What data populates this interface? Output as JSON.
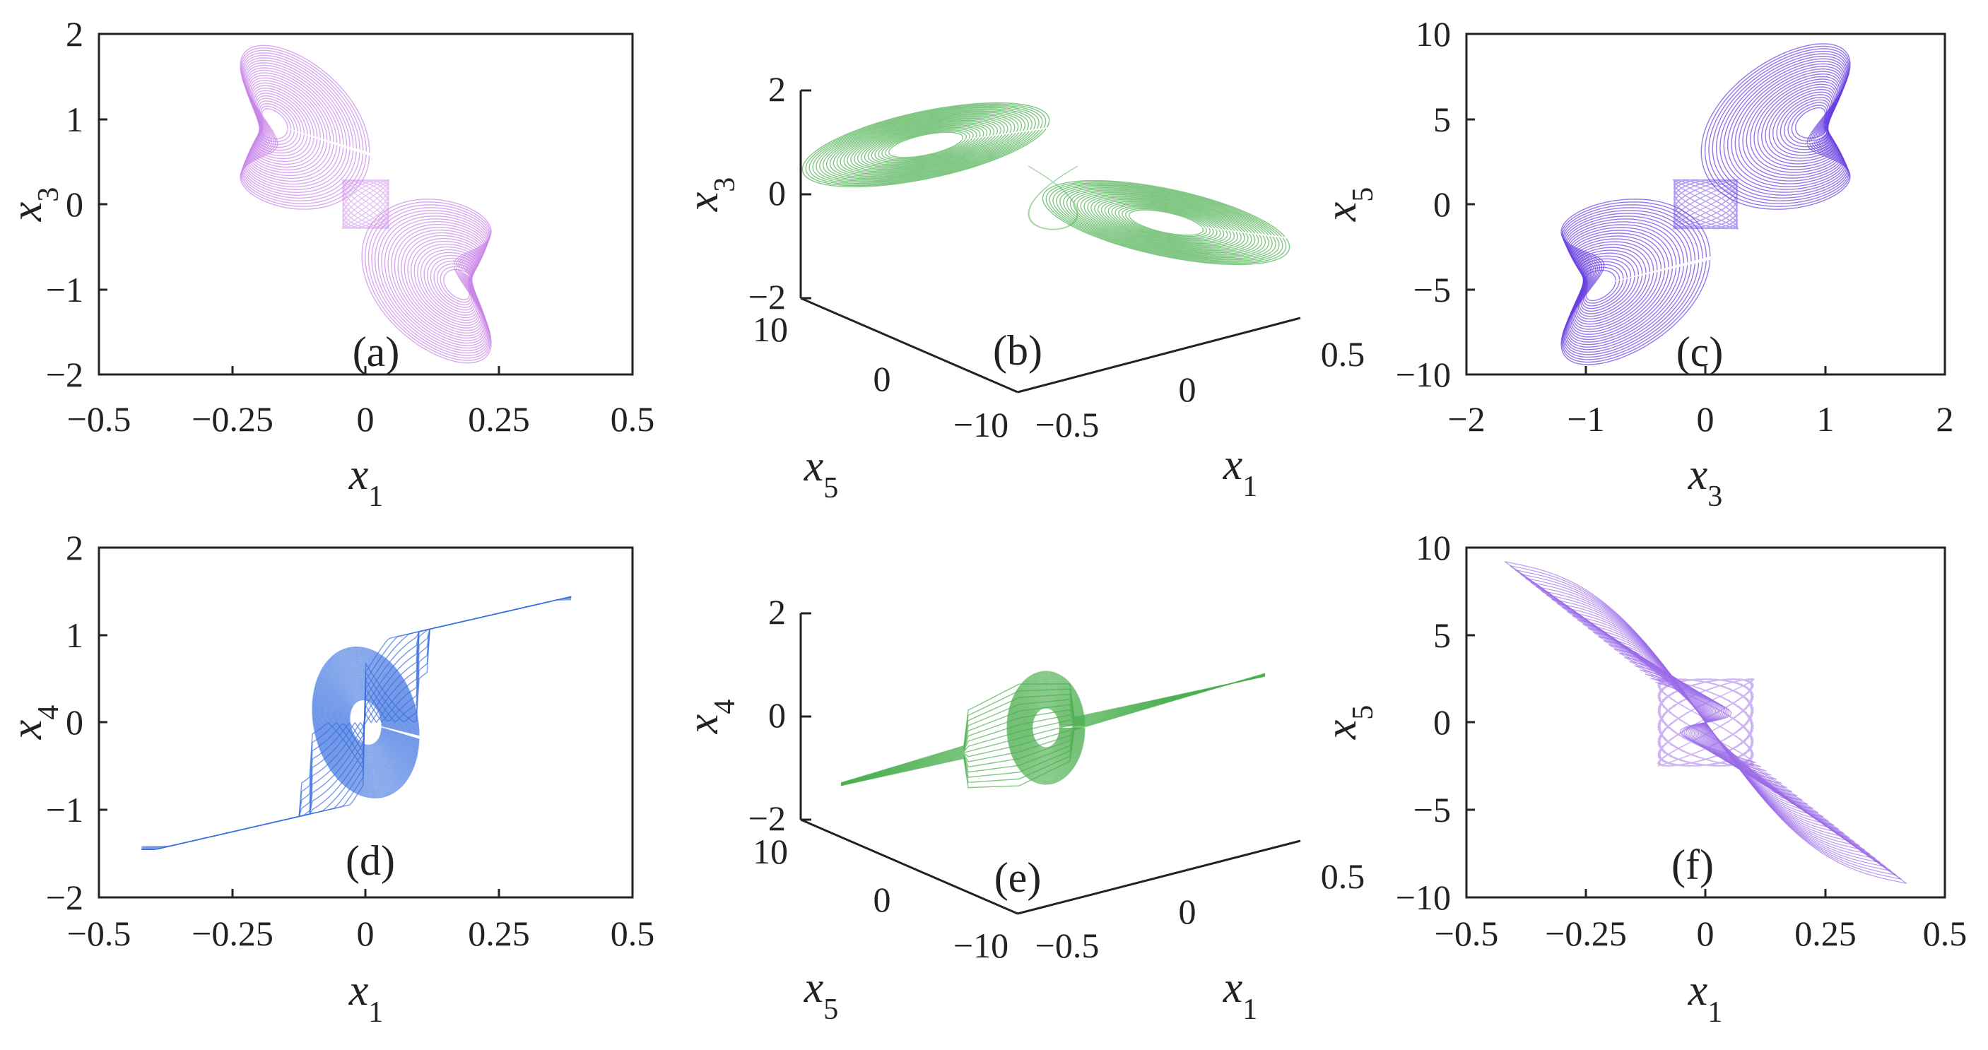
{
  "chart_data": [
    {
      "panel": "(a)",
      "type": "line",
      "subtype": "2d-phase-portrait",
      "color": "#C985E8",
      "xlabel": {
        "var": "x",
        "sub": "1"
      },
      "ylabel": {
        "var": "x",
        "sub": "3"
      },
      "xlim": [
        -0.5,
        0.5
      ],
      "ylim": [
        -2,
        2
      ],
      "xticks": [
        "-0.5",
        "-0.25",
        "0",
        "0.25",
        "0.5"
      ],
      "yticks": [
        "-2",
        "-1",
        "0",
        "1",
        "2"
      ],
      "shape": "odd-lobes",
      "params": {
        "ax": 0.36,
        "ay": 1.9
      }
    },
    {
      "panel": "(b)",
      "type": "line",
      "subtype": "3d-phase-portrait",
      "color": "#4CAF50",
      "xlabel": {
        "var": "x",
        "sub": "1"
      },
      "ylabel": {
        "var": "x",
        "sub": "5"
      },
      "zlabel": {
        "var": "x",
        "sub": "3"
      },
      "x1ticks": [
        "-0.5",
        "0",
        "0.5"
      ],
      "x5ticks": [
        "10",
        "0",
        "-10"
      ],
      "zticks": [
        "-2",
        "0",
        "2"
      ],
      "shape": "3d-lobes"
    },
    {
      "panel": "(c)",
      "type": "line",
      "subtype": "2d-phase-portrait",
      "color": "#6A3FE0",
      "xlabel": {
        "var": "x",
        "sub": "3"
      },
      "ylabel": {
        "var": "x",
        "sub": "5"
      },
      "xlim": [
        -2,
        2
      ],
      "ylim": [
        -10,
        10
      ],
      "xticks": [
        "-2",
        "-1",
        "0",
        "1",
        "2"
      ],
      "yticks": [
        "-10",
        "-5",
        "0",
        "5",
        "10"
      ],
      "shape": "even-lobes",
      "params": {
        "ax": 1.85,
        "ay": 9.6
      }
    },
    {
      "panel": "(d)",
      "type": "line",
      "subtype": "2d-phase-portrait",
      "color": "#3A6FE0",
      "xlabel": {
        "var": "x",
        "sub": "1"
      },
      "ylabel": {
        "var": "x",
        "sub": "4"
      },
      "xlim": [
        -0.5,
        0.5
      ],
      "ylim": [
        -2,
        2
      ],
      "xticks": [
        "-0.5",
        "-0.25",
        "0",
        "0.25",
        "0.5"
      ],
      "yticks": [
        "-2",
        "-1",
        "0",
        "1",
        "2"
      ],
      "shape": "s-curve"
    },
    {
      "panel": "(e)",
      "type": "line",
      "subtype": "3d-phase-portrait",
      "color": "#4CAF50",
      "xlabel": {
        "var": "x",
        "sub": "1"
      },
      "ylabel": {
        "var": "x",
        "sub": "5"
      },
      "zlabel": {
        "var": "x",
        "sub": "4"
      },
      "x1ticks": [
        "-0.5",
        "0",
        "0.5"
      ],
      "x5ticks": [
        "10",
        "0",
        "-10"
      ],
      "zticks": [
        "-2",
        "0",
        "2"
      ],
      "shape": "3d-s-curve"
    },
    {
      "panel": "(f)",
      "type": "line",
      "subtype": "2d-phase-portrait",
      "color": "#9B6BE8",
      "xlabel": {
        "var": "x",
        "sub": "1"
      },
      "ylabel": {
        "var": "x",
        "sub": "5"
      },
      "xlim": [
        -0.5,
        0.5
      ],
      "ylim": [
        -10,
        10
      ],
      "xticks": [
        "-0.5",
        "-0.25",
        "0",
        "0.25",
        "0.5"
      ],
      "yticks": [
        "-10",
        "-5",
        "0",
        "5",
        "10"
      ],
      "shape": "bowtie"
    }
  ]
}
